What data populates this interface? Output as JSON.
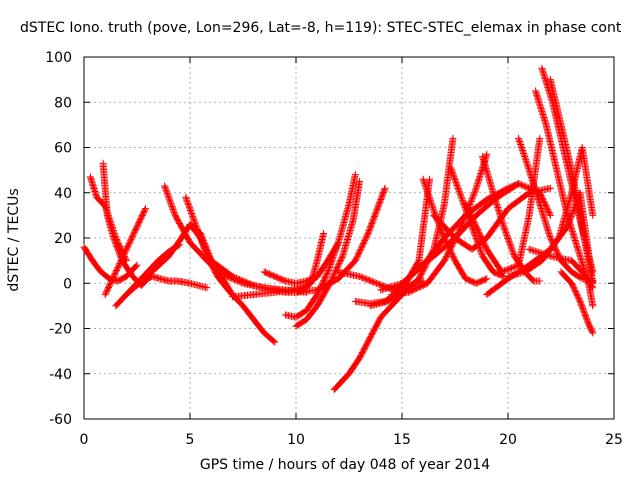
{
  "chart_data": {
    "type": "line",
    "title": "dSTEC Iono. truth (pove, Lon=296, Lat=-8, h=119): STEC-STEC_elemax in phase cont",
    "xlabel": "GPS time / hours of day 048 of year 2014",
    "ylabel": "dSTEC  / TECUs",
    "xlim": [
      0,
      25
    ],
    "ylim": [
      -60,
      100
    ],
    "x_ticks": [
      0,
      5,
      10,
      15,
      20,
      25
    ],
    "y_ticks": [
      -60,
      -40,
      -20,
      0,
      20,
      40,
      60,
      80,
      100
    ],
    "grid": true,
    "marker": "plus",
    "color": "#ff0000",
    "series": [
      {
        "x": [
          0.3,
          0.6,
          1.0,
          1.5,
          2.0
        ],
        "y": [
          47,
          38,
          34,
          20,
          10
        ]
      },
      {
        "x": [
          0.9,
          1.1,
          1.4,
          1.8,
          2.3,
          2.7,
          3.0,
          3.3
        ],
        "y": [
          53,
          30,
          20,
          10,
          3,
          -1,
          2,
          8
        ]
      },
      {
        "x": [
          0.0,
          0.4,
          0.8,
          1.2,
          1.6,
          2.0,
          2.5
        ],
        "y": [
          16,
          10,
          5,
          2,
          1,
          3,
          8
        ]
      },
      {
        "x": [
          1.0,
          1.5,
          2.0,
          2.5,
          2.9
        ],
        "y": [
          -5,
          5,
          15,
          25,
          33
        ]
      },
      {
        "x": [
          1.5,
          2.0,
          2.5,
          3.0,
          3.5,
          4.0,
          4.5
        ],
        "y": [
          -10,
          -5,
          0,
          5,
          10,
          14,
          17
        ]
      },
      {
        "x": [
          3.8,
          4.3,
          5.0,
          5.8,
          6.5,
          7.5,
          8.5,
          9.5,
          10.5
        ],
        "y": [
          43,
          30,
          18,
          10,
          4,
          0,
          -2,
          -3,
          -4
        ]
      },
      {
        "x": [
          4.8,
          5.3,
          5.8,
          6.3,
          6.8,
          7.5,
          8.0,
          8.5,
          9.0
        ],
        "y": [
          38,
          25,
          12,
          3,
          -3,
          -10,
          -16,
          -22,
          -26
        ]
      },
      {
        "x": [
          5.0,
          5.5,
          6.0,
          7.0,
          8.0,
          9.0,
          10.0
        ],
        "y": [
          26,
          20,
          10,
          3,
          -1,
          -3,
          -4
        ]
      },
      {
        "x": [
          2.5,
          3.2,
          4.0,
          4.6,
          5.0,
          5.5,
          6.0,
          7.0
        ],
        "y": [
          -1,
          5,
          12,
          20,
          26,
          22,
          10,
          -5
        ]
      },
      {
        "x": [
          2.0,
          2.6,
          3.2,
          3.6,
          4.0,
          4.4,
          5.0,
          5.8
        ],
        "y": [
          -5,
          0,
          3,
          2,
          1,
          1,
          0,
          -2
        ]
      },
      {
        "x": [
          7.0,
          8.0,
          9.0,
          9.8,
          10.5,
          11.0,
          11.5,
          12.0
        ],
        "y": [
          -6,
          -5,
          -4,
          -3,
          -1,
          3,
          10,
          18
        ]
      },
      {
        "x": [
          9.5,
          10.0,
          10.5,
          11.0,
          11.5,
          12.0,
          12.5,
          12.8
        ],
        "y": [
          -14,
          -15,
          -12,
          -5,
          5,
          18,
          35,
          48
        ]
      },
      {
        "x": [
          10.0,
          10.5,
          11.0,
          11.6,
          12.2,
          12.7,
          13.0
        ],
        "y": [
          -19,
          -16,
          -10,
          0,
          12,
          28,
          45
        ]
      },
      {
        "x": [
          9.0,
          9.5,
          10.0,
          10.3,
          10.7,
          11.0,
          11.3
        ],
        "y": [
          -3,
          -4,
          -4,
          -3,
          0,
          10,
          22
        ]
      },
      {
        "x": [
          8.5,
          9.0,
          9.5,
          10.0,
          10.5,
          11.0
        ],
        "y": [
          5,
          3,
          1,
          0,
          1,
          3
        ]
      },
      {
        "x": [
          10.0,
          11.0,
          12.0,
          12.8,
          13.4,
          13.8,
          14.2
        ],
        "y": [
          -4,
          -3,
          2,
          10,
          22,
          32,
          42
        ]
      },
      {
        "x": [
          11.8,
          12.5,
          13.0,
          13.5,
          14.0,
          14.5,
          15.0
        ],
        "y": [
          -47,
          -40,
          -33,
          -24,
          -15,
          -10,
          -5
        ]
      },
      {
        "x": [
          12.0,
          13.0,
          13.8,
          14.6,
          15.3,
          16.0
        ],
        "y": [
          5,
          3,
          0,
          -3,
          -1,
          1
        ]
      },
      {
        "x": [
          12.8,
          13.5,
          14.2,
          15.0,
          15.8,
          16.3
        ],
        "y": [
          -8,
          -9,
          -8,
          -3,
          10,
          46
        ]
      },
      {
        "x": [
          13.5,
          14.3,
          15.0,
          15.8,
          16.5,
          17.0,
          17.4
        ],
        "y": [
          -10,
          -8,
          -5,
          2,
          15,
          35,
          64
        ]
      },
      {
        "x": [
          14.5,
          15.3,
          16.2,
          17.0,
          17.8,
          18.5,
          19.0
        ],
        "y": [
          -5,
          -4,
          0,
          10,
          25,
          42,
          57
        ]
      },
      {
        "x": [
          16.0,
          16.5,
          17.0,
          17.5,
          18.0,
          18.5,
          19.0
        ],
        "y": [
          46,
          32,
          20,
          10,
          2,
          0,
          2
        ]
      },
      {
        "x": [
          17.3,
          17.8,
          18.3,
          18.8,
          19.3,
          19.8
        ],
        "y": [
          51,
          38,
          25,
          12,
          5,
          3
        ]
      },
      {
        "x": [
          18.8,
          19.3,
          19.8,
          20.3,
          20.8,
          21.2,
          21.5
        ],
        "y": [
          56,
          40,
          25,
          12,
          5,
          1,
          1
        ]
      },
      {
        "x": [
          14.0,
          15.0,
          16.0,
          17.0,
          18.0,
          19.0,
          20.0,
          20.5
        ],
        "y": [
          -3,
          0,
          8,
          20,
          30,
          37,
          42,
          44
        ]
      },
      {
        "x": [
          15.5,
          16.5,
          17.5,
          18.5,
          19.5,
          20.5,
          21.5,
          22.0
        ],
        "y": [
          5,
          12,
          20,
          30,
          38,
          44,
          40,
          30
        ]
      },
      {
        "x": [
          16.5,
          17.0,
          17.5,
          18.3,
          19.0,
          20.0,
          21.0,
          22.0
        ],
        "y": [
          30,
          25,
          20,
          15,
          20,
          33,
          40,
          42
        ]
      },
      {
        "x": [
          18.0,
          18.5,
          19.0,
          19.7,
          20.5,
          21.0,
          21.5
        ],
        "y": [
          35,
          25,
          15,
          5,
          8,
          30,
          64
        ]
      },
      {
        "x": [
          20.5,
          21.0,
          21.5,
          22.0,
          22.5,
          23.0,
          23.5,
          24.0
        ],
        "y": [
          64,
          50,
          35,
          20,
          10,
          5,
          2,
          1
        ]
      },
      {
        "x": [
          21.3,
          21.8,
          22.3,
          22.8,
          23.3,
          23.8,
          24.0
        ],
        "y": [
          85,
          70,
          50,
          30,
          15,
          0,
          -10
        ]
      },
      {
        "x": [
          21.6,
          22.1,
          22.6,
          23.1,
          23.6,
          24.0
        ],
        "y": [
          95,
          80,
          60,
          40,
          20,
          5
        ]
      },
      {
        "x": [
          22.0,
          22.5,
          23.0,
          23.5,
          24.0
        ],
        "y": [
          90,
          70,
          50,
          25,
          0
        ]
      },
      {
        "x": [
          20.0,
          20.8,
          21.6,
          22.4,
          23.0,
          23.5,
          24.0
        ],
        "y": [
          3,
          5,
          10,
          20,
          40,
          60,
          30
        ]
      },
      {
        "x": [
          19.0,
          20.0,
          21.0,
          22.0,
          22.8,
          23.4,
          24.0
        ],
        "y": [
          -5,
          2,
          8,
          15,
          25,
          40,
          0
        ]
      },
      {
        "x": [
          22.5,
          23.0,
          23.4,
          23.8,
          24.0
        ],
        "y": [
          5,
          0,
          -8,
          -18,
          -22
        ]
      },
      {
        "x": [
          21.0,
          22.0,
          23.0,
          23.5,
          24.0
        ],
        "y": [
          15,
          12,
          10,
          5,
          -2
        ]
      }
    ]
  }
}
